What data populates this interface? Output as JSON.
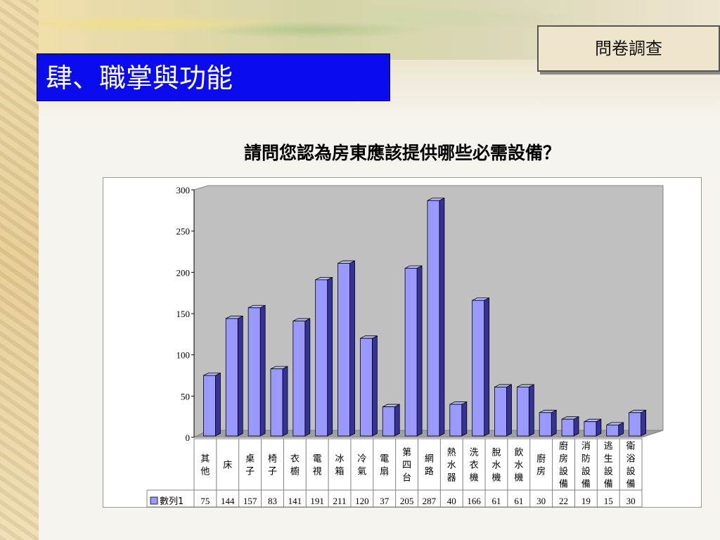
{
  "slide": {
    "title": "肆、職掌與功能",
    "corner_label": "問卷調查"
  },
  "colors": {
    "title_bg": "#0b0bef",
    "bar_front": "#9999ff",
    "bar_side": "#333399",
    "plot_back": "#c0c0c0"
  },
  "chart_data": {
    "type": "bar",
    "title": "請問您認為房東應該提供哪些必需設備？",
    "categories": [
      "其他",
      "床",
      "桌子",
      "椅子",
      "衣櫥",
      "電視",
      "冰箱",
      "冷氣",
      "電扇",
      "第四台",
      "網路",
      "熱水器",
      "洗衣機",
      "脫水機",
      "飲水機",
      "廚房",
      "廚房設備",
      "消防設備",
      "逃生設備",
      "衛浴設備"
    ],
    "series": [
      {
        "name": "數列1",
        "values": [
          75,
          144,
          157,
          83,
          141,
          191,
          211,
          120,
          37,
          205,
          287,
          40,
          166,
          61,
          61,
          30,
          22,
          19,
          15,
          30
        ]
      }
    ],
    "yticks": [
      "0",
      "50",
      "100",
      "150",
      "200",
      "250",
      "300"
    ],
    "ylim": [
      0,
      300
    ],
    "data_table": true,
    "grid": false
  }
}
